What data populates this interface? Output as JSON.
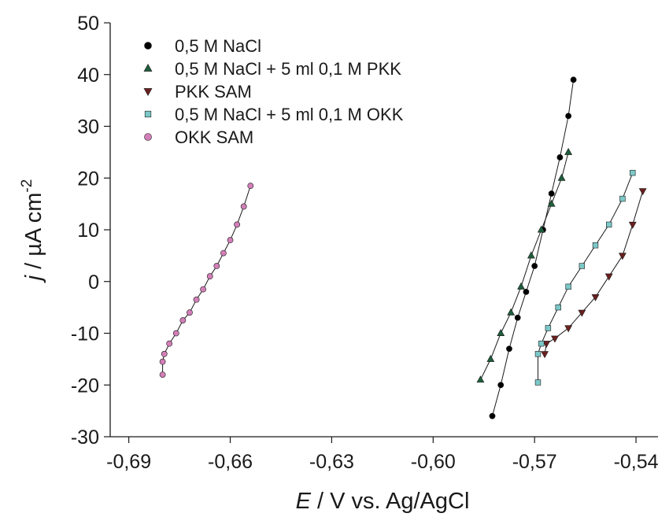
{
  "chart_data": {
    "type": "scatter",
    "title": "",
    "xlabel": {
      "italic": "E",
      "rest": " / V vs. Ag/AgCl"
    },
    "ylabel": {
      "italic": "j",
      "rest": " / µA cm",
      "sup": "-2"
    },
    "xlim": [
      -0.6955,
      -0.5335
    ],
    "ylim": [
      -30,
      50
    ],
    "xticks": [
      -0.69,
      -0.66,
      -0.63,
      -0.6,
      -0.57,
      -0.54
    ],
    "xtick_labels": [
      "-0,69",
      "-0,66",
      "-0,63",
      "-0,60",
      "-0,57",
      "-0,54"
    ],
    "yticks": [
      -30,
      -20,
      -10,
      0,
      10,
      20,
      30,
      40,
      50
    ],
    "ytick_labels": [
      "-30",
      "-20",
      "-10",
      "0",
      "10",
      "20",
      "30",
      "40",
      "50"
    ],
    "grid": false,
    "legend_position": "top-left",
    "series": [
      {
        "name": "0,5 M NaCl",
        "marker": "circle",
        "color": "#000000",
        "x": [
          -0.5825,
          -0.58,
          -0.5775,
          -0.575,
          -0.5725,
          -0.57,
          -0.5675,
          -0.565,
          -0.5625,
          -0.56,
          -0.5585
        ],
        "y": [
          -26,
          -20,
          -13,
          -7,
          -2,
          3,
          10,
          17,
          24,
          32,
          39
        ]
      },
      {
        "name": "0,5 M NaCl + 5 ml 0,1 M PKK",
        "marker": "triangle-up",
        "color": "#1f5e3c",
        "x": [
          -0.586,
          -0.583,
          -0.58,
          -0.577,
          -0.574,
          -0.571,
          -0.568,
          -0.565,
          -0.562,
          -0.56
        ],
        "y": [
          -19,
          -15,
          -10,
          -6,
          -1,
          5,
          10,
          15,
          20,
          25
        ]
      },
      {
        "name": "PKK SAM",
        "marker": "triangle-down",
        "color": "#6b1f1f",
        "x": [
          -0.567,
          -0.5665,
          -0.564,
          -0.56,
          -0.556,
          -0.552,
          -0.548,
          -0.544,
          -0.541,
          -0.538
        ],
        "y": [
          -14,
          -12,
          -11,
          -9,
          -6,
          -3,
          1,
          5,
          11,
          17.5
        ]
      },
      {
        "name": "0,5 M NaCl + 5 ml 0,1 M OKK",
        "marker": "square",
        "color": "#7cc8c8",
        "x": [
          -0.569,
          -0.569,
          -0.568,
          -0.566,
          -0.563,
          -0.56,
          -0.556,
          -0.552,
          -0.548,
          -0.544,
          -0.541
        ],
        "y": [
          -19.5,
          -14,
          -12,
          -9,
          -5,
          -1,
          3,
          7,
          11,
          16,
          21
        ]
      },
      {
        "name": "OKK SAM",
        "marker": "circle",
        "color": "#d27fb8",
        "x": [
          -0.68,
          -0.68,
          -0.6795,
          -0.678,
          -0.676,
          -0.674,
          -0.672,
          -0.67,
          -0.668,
          -0.666,
          -0.664,
          -0.662,
          -0.66,
          -0.658,
          -0.656,
          -0.654
        ],
        "y": [
          -18,
          -15.5,
          -14,
          -12,
          -10,
          -7.5,
          -6,
          -3.5,
          -1.5,
          1,
          3,
          5.5,
          8,
          11,
          14.5,
          18.5
        ]
      }
    ]
  }
}
